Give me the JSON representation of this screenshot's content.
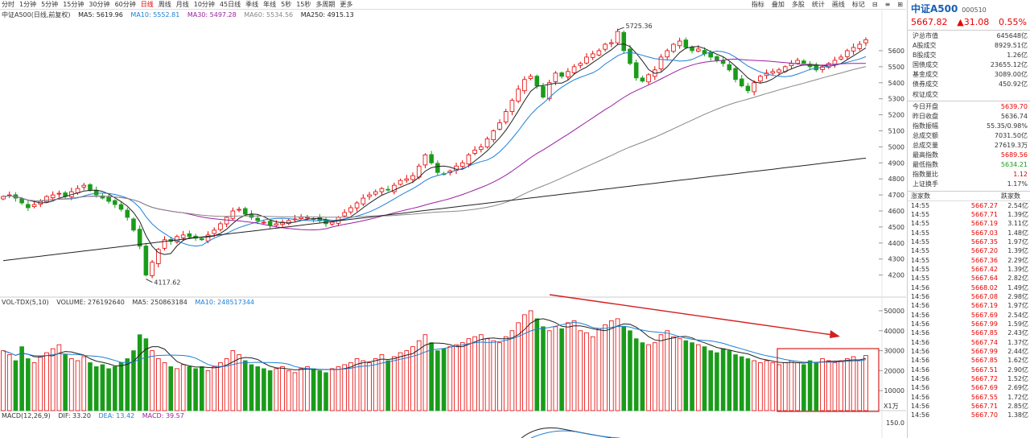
{
  "toolbar": {
    "periods": [
      "分时",
      "1分钟",
      "5分钟",
      "15分钟",
      "30分钟",
      "60分钟",
      "日线",
      "周线",
      "月线",
      "10分钟",
      "45日线",
      "季线",
      "年线",
      "5秒",
      "15秒",
      "多周期",
      "更多"
    ],
    "active_period": "日线",
    "tools": [
      "指标",
      "叠加",
      "多股",
      "统计",
      "画线",
      "标记",
      "⊟",
      "≡",
      "⊞"
    ]
  },
  "main_pane": {
    "name": "中证A500(日线,前复权)",
    "ma5": "MA5: 5619.96",
    "ma10": "MA10: 5552.81",
    "ma30": "MA30: 5497.28",
    "ma60": "MA60: 5534.56",
    "ma250": "MA250: 4915.13",
    "high_label": "5725.36",
    "low_label": "4117.62",
    "y_ticks": [
      5600,
      5500,
      5400,
      5300,
      5200,
      5100,
      5000,
      4900,
      4800,
      4700,
      4600,
      4500,
      4400,
      4300,
      4200
    ]
  },
  "vol_pane": {
    "name": "VOL-TDX(5,10)",
    "volume": "VOLUME: 276192640",
    "ma5": "MA5: 250863184",
    "ma10": "MA10: 248517344",
    "y_ticks": [
      "50000",
      "40000",
      "30000",
      "20000",
      "10000"
    ],
    "unit": "X1万"
  },
  "macd_pane": {
    "name": "MACD(12,26,9)",
    "dif": "DIF: 33.20",
    "dea": "DEA: 13.42",
    "macd": "MACD: 39.57",
    "y_tick": "150.0"
  },
  "quote": {
    "name": "中证A500",
    "code": "000510",
    "price": "5667.82",
    "change": "▲31.08",
    "pct": "0.55%",
    "market_rows": [
      {
        "label": "沪总市值",
        "value": "645648亿"
      },
      {
        "label": "A股成交",
        "value": "8929.51亿"
      },
      {
        "label": "B股成交",
        "value": "1.26亿"
      },
      {
        "label": "国债成交",
        "value": "23655.12亿"
      },
      {
        "label": "基金成交",
        "value": "3089.00亿"
      },
      {
        "label": "债券成交",
        "value": "450.92亿"
      },
      {
        "label": "权证成交",
        "value": ""
      }
    ],
    "stats_rows": [
      {
        "label": "今日开盘",
        "value": "5639.70",
        "color": "red"
      },
      {
        "label": "昨日收盘",
        "value": "5636.74",
        "color": ""
      },
      {
        "label": "指数振幅",
        "value": "55.35/0.98%",
        "color": ""
      },
      {
        "label": "总成交额",
        "value": "7031.50亿",
        "color": ""
      },
      {
        "label": "总成交量",
        "value": "27619.3万",
        "color": ""
      },
      {
        "label": "最高指数",
        "value": "5689.56",
        "color": "red"
      },
      {
        "label": "最低指数",
        "value": "5634.21",
        "color": "green"
      },
      {
        "label": "指数量比",
        "value": "1.12",
        "color": "red"
      },
      {
        "label": "上证换手",
        "value": "1.17%",
        "color": ""
      }
    ],
    "tick_head": [
      "涨家数",
      "跌家数"
    ],
    "ticks": [
      {
        "t": "14:55",
        "p": "5667.27",
        "a": "2.54亿"
      },
      {
        "t": "14:55",
        "p": "5667.71",
        "a": "1.39亿"
      },
      {
        "t": "14:55",
        "p": "5667.19",
        "a": "3.11亿"
      },
      {
        "t": "14:55",
        "p": "5667.03",
        "a": "1.48亿"
      },
      {
        "t": "14:55",
        "p": "5667.35",
        "a": "1.97亿"
      },
      {
        "t": "14:55",
        "p": "5667.20",
        "a": "1.39亿"
      },
      {
        "t": "14:55",
        "p": "5667.36",
        "a": "2.29亿"
      },
      {
        "t": "14:55",
        "p": "5667.42",
        "a": "1.39亿"
      },
      {
        "t": "14:55",
        "p": "5667.64",
        "a": "2.82亿"
      },
      {
        "t": "14:56",
        "p": "5668.02",
        "a": "1.49亿"
      },
      {
        "t": "14:56",
        "p": "5667.08",
        "a": "2.98亿"
      },
      {
        "t": "14:56",
        "p": "5667.19",
        "a": "1.97亿"
      },
      {
        "t": "14:56",
        "p": "5667.69",
        "a": "2.54亿"
      },
      {
        "t": "14:56",
        "p": "5667.99",
        "a": "1.59亿"
      },
      {
        "t": "14:56",
        "p": "5667.85",
        "a": "2.43亿"
      },
      {
        "t": "14:56",
        "p": "5667.74",
        "a": "1.37亿"
      },
      {
        "t": "14:56",
        "p": "5667.99",
        "a": "2.44亿"
      },
      {
        "t": "14:56",
        "p": "5667.85",
        "a": "1.62亿"
      },
      {
        "t": "14:56",
        "p": "5667.51",
        "a": "2.90亿"
      },
      {
        "t": "14:56",
        "p": "5667.72",
        "a": "1.52亿"
      },
      {
        "t": "14:56",
        "p": "5667.69",
        "a": "2.69亿"
      },
      {
        "t": "14:56",
        "p": "5667.55",
        "a": "1.72亿"
      },
      {
        "t": "14:56",
        "p": "5667.71",
        "a": "2.85亿"
      },
      {
        "t": "14:56",
        "p": "5667.70",
        "a": "1.38亿"
      }
    ]
  },
  "colors": {
    "up": "#e60000",
    "down": "#1a9c1a",
    "ma5": "#222222",
    "ma10": "#1e7fd6",
    "ma30": "#9a1fa0",
    "ma60": "#888888",
    "ma250": "#222222",
    "accent": "#1a5fb4"
  },
  "chart_data": {
    "type": "candlestick",
    "price_range": [
      4117.62,
      5725.36
    ],
    "y_ticks": [
      4200,
      4300,
      4400,
      4500,
      4600,
      4700,
      4800,
      4900,
      5000,
      5100,
      5200,
      5300,
      5400,
      5500,
      5600
    ],
    "volume_ticks": [
      10000,
      20000,
      30000,
      40000,
      50000
    ],
    "volume_unit": "X1万",
    "annotated_high": 5725.36,
    "annotated_low": 4117.62,
    "last_close": 5667.82,
    "close_series": [
      4690,
      4700,
      4680,
      4650,
      4620,
      4640,
      4660,
      4690,
      4700,
      4710,
      4690,
      4720,
      4740,
      4760,
      4730,
      4700,
      4680,
      4660,
      4640,
      4610,
      4560,
      4480,
      4380,
      4200,
      4280,
      4360,
      4420,
      4410,
      4440,
      4450,
      4440,
      4430,
      4420,
      4450,
      4480,
      4520,
      4560,
      4600,
      4610,
      4580,
      4560,
      4540,
      4530,
      4510,
      4520,
      4530,
      4540,
      4550,
      4560,
      4560,
      4550,
      4540,
      4520,
      4530,
      4560,
      4590,
      4620,
      4650,
      4680,
      4700,
      4720,
      4740,
      4730,
      4760,
      4790,
      4800,
      4820,
      4880,
      4950,
      4900,
      4840,
      4830,
      4850,
      4880,
      4900,
      4950,
      4980,
      5000,
      5050,
      5100,
      5150,
      5220,
      5290,
      5360,
      5420,
      5440,
      5380,
      5310,
      5400,
      5460,
      5440,
      5470,
      5500,
      5520,
      5560,
      5580,
      5600,
      5640,
      5650,
      5720,
      5600,
      5520,
      5430,
      5410,
      5450,
      5480,
      5560,
      5600,
      5640,
      5660,
      5620,
      5600,
      5610,
      5580,
      5560,
      5540,
      5520,
      5480,
      5420,
      5380,
      5350,
      5400,
      5440,
      5460,
      5470,
      5480,
      5500,
      5520,
      5540,
      5520,
      5500,
      5480,
      5500,
      5520,
      5540,
      5560,
      5600,
      5620,
      5640,
      5668
    ],
    "volume_series": [
      30000,
      28000,
      25000,
      32000,
      26000,
      24000,
      27000,
      29000,
      31000,
      33000,
      28000,
      26000,
      25000,
      27000,
      24000,
      22000,
      23000,
      21000,
      22000,
      24000,
      26000,
      30000,
      38000,
      36000,
      30000,
      26000,
      24000,
      22000,
      21000,
      23000,
      22000,
      21000,
      22000,
      20000,
      22000,
      24000,
      26000,
      30000,
      28000,
      25000,
      23000,
      22000,
      21000,
      20000,
      21000,
      22000,
      20000,
      19000,
      21000,
      22000,
      21000,
      20000,
      19000,
      21000,
      22000,
      23000,
      24000,
      26000,
      25000,
      24000,
      26000,
      28000,
      25000,
      27000,
      29000,
      30000,
      32000,
      35000,
      38000,
      34000,
      30000,
      31000,
      32000,
      33000,
      34000,
      36000,
      37000,
      38000,
      36000,
      35000,
      34000,
      37000,
      40000,
      44000,
      48000,
      50000,
      46000,
      42000,
      40000,
      42000,
      41000,
      44000,
      45000,
      40000,
      39000,
      37000,
      41000,
      43000,
      45000,
      46000,
      42000,
      40000,
      36000,
      34000,
      33000,
      34000,
      38000,
      40000,
      37000,
      36000,
      35000,
      34000,
      33000,
      32000,
      30000,
      29000,
      31000,
      30000,
      28000,
      27000,
      26000,
      25000,
      24000,
      25000,
      24000,
      23000,
      24000,
      25000,
      24000,
      23000,
      25000,
      24000,
      26000,
      25000,
      24000,
      25000,
      26000,
      27000,
      25000,
      27600
    ]
  }
}
